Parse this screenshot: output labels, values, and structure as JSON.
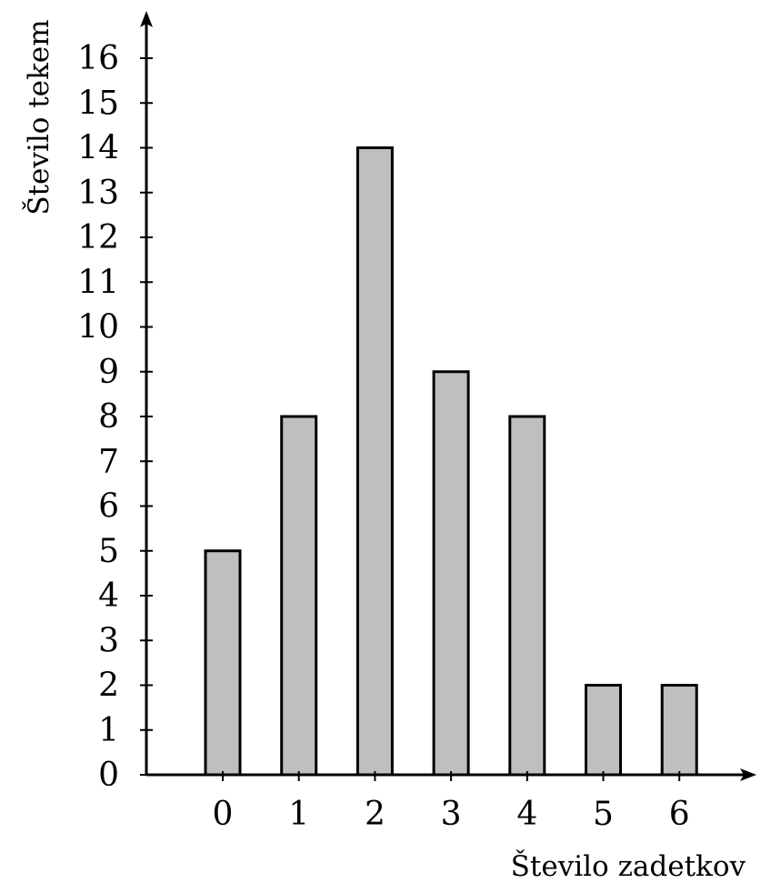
{
  "chart_data": {
    "type": "bar",
    "categories": [
      "0",
      "1",
      "2",
      "3",
      "4",
      "5",
      "6"
    ],
    "values": [
      5,
      8,
      14,
      9,
      8,
      2,
      2
    ],
    "title": "",
    "xlabel": "Število zadetkov",
    "ylabel": "Število tekem",
    "ylim": [
      0,
      16
    ],
    "yticks": [
      "0",
      "1",
      "2",
      "3",
      "4",
      "5",
      "6",
      "7",
      "8",
      "9",
      "10",
      "11",
      "12",
      "13",
      "14",
      "15",
      "16"
    ],
    "grid": false,
    "legend": "none",
    "colors": {
      "bar_fill": "#bfbfbf",
      "bar_stroke": "#000000",
      "axis": "#000000"
    }
  }
}
